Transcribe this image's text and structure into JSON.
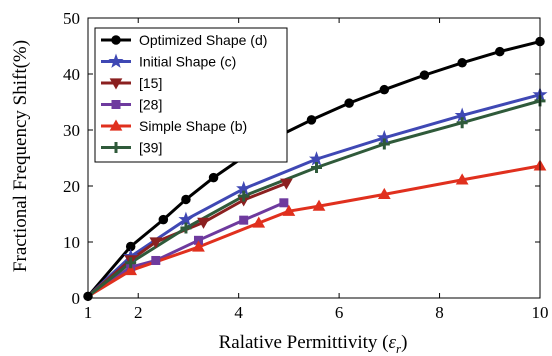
{
  "chart_data": {
    "type": "line",
    "xlabel_prefix": "Ralative Permittivity (",
    "xlabel_symbol": "ε",
    "xlabel_sub": "r",
    "xlabel_suffix": ")",
    "ylabel": "Fractional Frequency Shift(%)",
    "xlim": [
      1,
      10
    ],
    "ylim": [
      0,
      50
    ],
    "xticks": [
      1,
      2,
      4,
      6,
      8,
      10
    ],
    "yticks": [
      0,
      10,
      20,
      30,
      40,
      50
    ],
    "grid": false,
    "legend_position": "top-left",
    "series": [
      {
        "name": "Optimized Shape (d)",
        "color": "#000000",
        "marker": "circle",
        "x": [
          1,
          1.85,
          2.5,
          2.95,
          3.5,
          4.1,
          4.7,
          5.45,
          6.2,
          6.9,
          7.7,
          8.45,
          9.2,
          10
        ],
        "y": [
          0.3,
          9.2,
          14,
          17.6,
          21.5,
          25.2,
          28.5,
          31.8,
          34.8,
          37.2,
          39.8,
          42.0,
          44.0,
          45.8
        ]
      },
      {
        "name": "Initial Shape (c)",
        "color": "#3f48b4",
        "marker": "star",
        "x": [
          1,
          1.85,
          2.95,
          4.1,
          5.55,
          6.9,
          8.45,
          10
        ],
        "y": [
          0.3,
          7.4,
          14.0,
          19.5,
          24.8,
          28.6,
          32.6,
          36.3
        ]
      },
      {
        "name": "[15]",
        "color": "#8b2020",
        "marker": "triangle-down",
        "x": [
          1,
          1.85,
          2.35,
          3.3,
          4.1,
          4.95
        ],
        "y": [
          0.3,
          6.8,
          10.0,
          13.5,
          17.5,
          20.5
        ]
      },
      {
        "name": "[28]",
        "color": "#6e3a9e",
        "marker": "square",
        "x": [
          1,
          1.85,
          2.35,
          3.2,
          4.1,
          4.9
        ],
        "y": [
          0.3,
          5.5,
          6.7,
          10.3,
          13.9,
          17.0
        ]
      },
      {
        "name": "Simple Shape (b)",
        "color": "#e0301e",
        "marker": "triangle-up",
        "x": [
          1,
          1.85,
          3.2,
          4.4,
          5.0,
          5.6,
          6.9,
          8.45,
          10
        ],
        "y": [
          0.3,
          4.9,
          9.1,
          13.4,
          15.5,
          16.4,
          18.5,
          21.1,
          23.6
        ]
      },
      {
        "name": "[39]",
        "color": "#2f5a3a",
        "marker": "plus",
        "x": [
          1,
          1.85,
          2.95,
          4.1,
          5.55,
          6.9,
          8.45,
          10
        ],
        "y": [
          0.3,
          6.3,
          12.5,
          18.2,
          23.3,
          27.5,
          31.3,
          35.2
        ]
      }
    ]
  }
}
